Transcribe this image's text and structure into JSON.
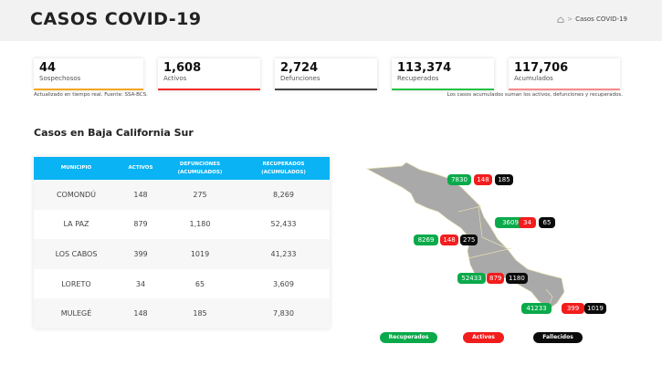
{
  "header": {
    "title": "CASOS COVID-19",
    "breadcrumb_home_icon": "home-icon",
    "breadcrumb_sep": ">",
    "breadcrumb_current": "Casos COVID-19"
  },
  "stats": [
    {
      "value": "44",
      "label": "Sospechosos",
      "color": "#f5a623"
    },
    {
      "value": "1,608",
      "label": "Activos",
      "color": "#f22b2b"
    },
    {
      "value": "2,724",
      "label": "Defunciones",
      "color": "#444444"
    },
    {
      "value": "113,374",
      "label": "Recuperados",
      "color": "#22c244"
    },
    {
      "value": "117,706",
      "label": "Acumulados",
      "color": "#f98a8a"
    }
  ],
  "notes": {
    "left": "Actualizado en tiempo real. Fuente: SSA-BCS.",
    "right": "Los casos acumulados suman los activos, defunciones y recuperados."
  },
  "section_title": "Casos en Baja California Sur",
  "table": {
    "headers": [
      "MUNICIPIO",
      "ACTIVOS",
      "DEFUNCIONES\n(ACUMULADOS)",
      "RECUPERADOS\n(ACUMULADOS)"
    ],
    "rows": [
      [
        "COMONDÚ",
        "148",
        "275",
        "8,269"
      ],
      [
        "LA PAZ",
        "879",
        "1,180",
        "52,433"
      ],
      [
        "LOS CABOS",
        "399",
        "1019",
        "41,233"
      ],
      [
        "LORETO",
        "34",
        "65",
        "3,609"
      ],
      [
        "MULEGÉ",
        "148",
        "185",
        "7,830"
      ]
    ]
  },
  "map": {
    "mulege": [
      "7830",
      "148",
      "185"
    ],
    "loreto": [
      "3609",
      "34",
      "65"
    ],
    "comondu": [
      "8269",
      "148",
      "275"
    ],
    "lapaz": [
      "52433",
      "879",
      "1180"
    ],
    "loscabos": [
      "41233",
      "399",
      "1019"
    ]
  },
  "legend": {
    "recuperados": "Recuperados",
    "activos": "Activos",
    "fallecidos": "Fallecidos"
  }
}
